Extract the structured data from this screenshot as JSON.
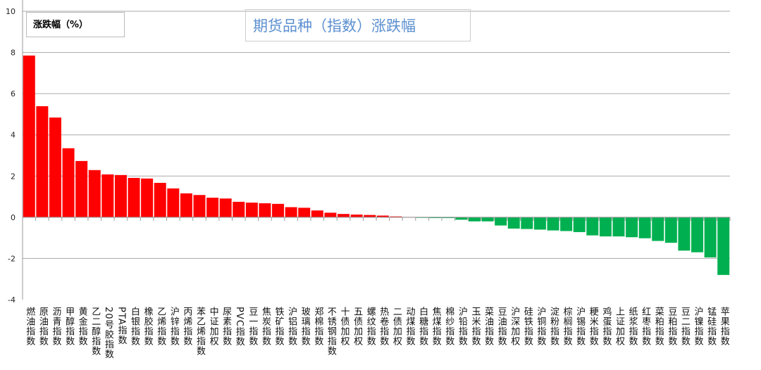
{
  "chart_data": {
    "type": "bar",
    "title": "期货品种（指数）涨跌幅",
    "legend": "涨跌幅（%）",
    "legend_placement": "top-left",
    "ylim": [
      -4,
      10
    ],
    "yticks": [
      -4,
      -2,
      0,
      2,
      4,
      6,
      8,
      10
    ],
    "grid": true,
    "colors": {
      "positive": "#ff0000",
      "negative": "#00b050"
    },
    "categories": [
      "燃油指数",
      "原油指数",
      "沥青指数",
      "甲醇指数",
      "黄金指数",
      "乙二醇指数",
      "20号胶指数",
      "PTA指数",
      "白银指数",
      "橡胶指数",
      "乙烯指数",
      "沪锌指数",
      "丙烯指数",
      "苯乙烯指数",
      "中证加权",
      "尿素指数",
      "PVC指数",
      "豆一指数",
      "焦炭指数",
      "铁矿指数",
      "沪铝指数",
      "玻璃指数",
      "郑棉指数",
      "不锈钢指数",
      "十债加权",
      "五债加权",
      "螺纹指数",
      "热卷指数",
      "二债加权",
      "动煤指数",
      "白糖指数",
      "焦煤指数",
      "棉纱指数",
      "沪铅指数",
      "玉米指数",
      "菜油指数",
      "豆油指数",
      "沪深加权",
      "硅铁指数",
      "沪铜指数",
      "淀粉指数",
      "棕榈指数",
      "沪锡指数",
      "粳米指数",
      "鸡蛋指数",
      "上证加权",
      "纸浆指数",
      "红枣指数",
      "菜粕指数",
      "豆粕指数",
      "豆二指数",
      "沪镍指数",
      "锰硅指数",
      "苹果指数"
    ],
    "values": [
      7.85,
      5.39,
      4.84,
      3.35,
      2.73,
      2.29,
      2.08,
      2.05,
      1.91,
      1.88,
      1.67,
      1.4,
      1.16,
      1.08,
      0.95,
      0.91,
      0.75,
      0.71,
      0.68,
      0.65,
      0.49,
      0.46,
      0.33,
      0.22,
      0.16,
      0.13,
      0.11,
      0.08,
      0.04,
      0.01,
      -0.03,
      -0.04,
      -0.04,
      -0.12,
      -0.2,
      -0.2,
      -0.4,
      -0.55,
      -0.57,
      -0.6,
      -0.64,
      -0.67,
      -0.72,
      -0.88,
      -0.93,
      -0.93,
      -0.97,
      -1.02,
      -1.15,
      -1.24,
      -1.62,
      -1.7,
      -1.95,
      -2.8
    ]
  }
}
